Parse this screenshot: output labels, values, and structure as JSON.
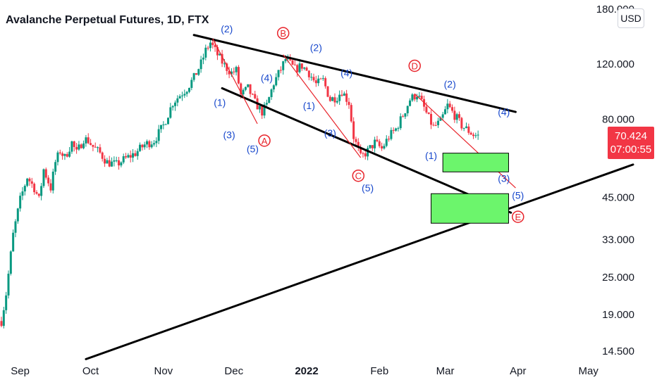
{
  "header": {
    "title": "Avalanche Perpetual Futures, 1D, FTX",
    "currency_button": "USD"
  },
  "price_tag": {
    "price": "70.424",
    "countdown": "07:00:55",
    "color": "#f23645"
  },
  "colors": {
    "up": "#089981",
    "down": "#f23645",
    "trendline": "#000000",
    "wave_blue": "#1848cc",
    "wave_red": "#e8242b",
    "box_fill": "#6cf56c"
  },
  "chart_data": {
    "type": "candlestick",
    "title": "Avalanche Perpetual Futures, 1D, FTX",
    "yscale": "log",
    "ylim": [
      14.5,
      180
    ],
    "y_ticks": [
      "180.000",
      "120.000",
      "80.000",
      "45.000",
      "33.000",
      "25.000",
      "19.000",
      "14.500"
    ],
    "x_ticks": [
      "Sep",
      "Oct",
      "Nov",
      "Dec",
      "2022",
      "Feb",
      "Mar",
      "Apr",
      "May"
    ],
    "x_range": [
      "2021-08-24",
      "2022-05-20"
    ],
    "last_price": "70.424",
    "close_path": [
      [
        "2021-08-24",
        18
      ],
      [
        "2021-08-26",
        22
      ],
      [
        "2021-08-29",
        34
      ],
      [
        "2021-09-01",
        44
      ],
      [
        "2021-09-04",
        52
      ],
      [
        "2021-09-07",
        48
      ],
      [
        "2021-09-09",
        44
      ],
      [
        "2021-09-11",
        55
      ],
      [
        "2021-09-14",
        48
      ],
      [
        "2021-09-16",
        58
      ],
      [
        "2021-09-18",
        63
      ],
      [
        "2021-09-20",
        60
      ],
      [
        "2021-09-23",
        67
      ],
      [
        "2021-09-25",
        62
      ],
      [
        "2021-09-28",
        69
      ],
      [
        "2021-09-30",
        68
      ],
      [
        "2021-10-02",
        65
      ],
      [
        "2021-10-05",
        62
      ],
      [
        "2021-10-08",
        58
      ],
      [
        "2021-10-12",
        57
      ],
      [
        "2021-10-15",
        59
      ],
      [
        "2021-10-20",
        62
      ],
      [
        "2021-10-24",
        66
      ],
      [
        "2021-10-28",
        68
      ],
      [
        "2021-11-01",
        76
      ],
      [
        "2021-11-05",
        90
      ],
      [
        "2021-11-08",
        95
      ],
      [
        "2021-11-11",
        100
      ],
      [
        "2021-11-14",
        108
      ],
      [
        "2021-11-17",
        120
      ],
      [
        "2021-11-19",
        132
      ],
      [
        "2021-11-21",
        140
      ],
      [
        "2021-11-24",
        128
      ],
      [
        "2021-11-27",
        118
      ],
      [
        "2021-11-30",
        112
      ],
      [
        "2021-12-02",
        114
      ],
      [
        "2021-12-04",
        95
      ],
      [
        "2021-12-07",
        100
      ],
      [
        "2021-12-10",
        90
      ],
      [
        "2021-12-13",
        84
      ],
      [
        "2021-12-15",
        88
      ],
      [
        "2021-12-18",
        104
      ],
      [
        "2021-12-21",
        115
      ],
      [
        "2021-12-23",
        124
      ],
      [
        "2021-12-27",
        115
      ],
      [
        "2021-12-30",
        118
      ],
      [
        "2022-01-02",
        112
      ],
      [
        "2022-01-05",
        103
      ],
      [
        "2022-01-08",
        106
      ],
      [
        "2022-01-11",
        92
      ],
      [
        "2022-01-14",
        94
      ],
      [
        "2022-01-16",
        98
      ],
      [
        "2022-01-19",
        90
      ],
      [
        "2022-01-21",
        70
      ],
      [
        "2022-01-24",
        60
      ],
      [
        "2022-01-27",
        63
      ],
      [
        "2022-01-30",
        67
      ],
      [
        "2022-02-02",
        64
      ],
      [
        "2022-02-05",
        70
      ],
      [
        "2022-02-08",
        74
      ],
      [
        "2022-02-11",
        82
      ],
      [
        "2022-02-14",
        92
      ],
      [
        "2022-02-17",
        96
      ],
      [
        "2022-02-19",
        90
      ],
      [
        "2022-02-22",
        80
      ],
      [
        "2022-02-24",
        75
      ],
      [
        "2022-02-27",
        78
      ],
      [
        "2022-03-02",
        88
      ],
      [
        "2022-03-05",
        82
      ],
      [
        "2022-03-08",
        76
      ],
      [
        "2022-03-11",
        73
      ],
      [
        "2022-03-13",
        71
      ],
      [
        "2022-03-15",
        70.4
      ]
    ],
    "trendlines": [
      {
        "name": "upper",
        "from": [
          "2021-11-14",
          148
        ],
        "to": [
          "2022-03-31",
          84
        ]
      },
      {
        "name": "lower",
        "from": [
          "2021-11-26",
          100
        ],
        "to": [
          "2022-03-29",
          40
        ]
      },
      {
        "name": "support",
        "from": [
          "2021-09-29",
          13.6
        ],
        "to": [
          "2022-05-20",
          57
        ]
      }
    ],
    "wave_paths": [
      {
        "points": [
          [
            "2021-11-22",
            144
          ],
          [
            "2021-12-11",
            77
          ]
        ]
      },
      {
        "points": [
          [
            "2021-12-22",
            128
          ],
          [
            "2022-01-24",
            60
          ]
        ]
      },
      {
        "points": [
          [
            "2022-02-16",
            96
          ],
          [
            "2022-03-31",
            48
          ]
        ]
      }
    ],
    "zones": [
      {
        "from": [
          "2022-02-28",
          62
        ],
        "to": [
          "2022-03-28",
          54
        ]
      },
      {
        "from": [
          "2022-02-23",
          46
        ],
        "to": [
          "2022-03-28",
          37
        ]
      }
    ],
    "wave_labels": [
      {
        "text": "(2)",
        "at": [
          "2021-11-28",
          155
        ],
        "color": "blue",
        "circled": false
      },
      {
        "text": "B",
        "at": [
          "2021-12-22",
          150
        ],
        "color": "red",
        "circled": true
      },
      {
        "text": "(2)",
        "at": [
          "2022-01-05",
          135
        ],
        "color": "blue",
        "circled": false
      },
      {
        "text": "(4)",
        "at": [
          "2021-12-15",
          108
        ],
        "color": "blue",
        "circled": false
      },
      {
        "text": "(4)",
        "at": [
          "2022-01-18",
          112
        ],
        "color": "blue",
        "circled": false
      },
      {
        "text": "(1)",
        "at": [
          "2021-11-25",
          90
        ],
        "color": "blue",
        "circled": false
      },
      {
        "text": "(1)",
        "at": [
          "2022-01-02",
          88
        ],
        "color": "blue",
        "circled": false
      },
      {
        "text": "(3)",
        "at": [
          "2021-11-29",
          71
        ],
        "color": "blue",
        "circled": false
      },
      {
        "text": "(3)",
        "at": [
          "2022-01-11",
          72
        ],
        "color": "blue",
        "circled": false
      },
      {
        "text": "(5)",
        "at": [
          "2021-12-09",
          64
        ],
        "color": "blue",
        "circled": false
      },
      {
        "text": "A",
        "at": [
          "2021-12-14",
          68
        ],
        "color": "red",
        "circled": true
      },
      {
        "text": "C",
        "at": [
          "2022-01-23",
          52.5
        ],
        "color": "red",
        "circled": true
      },
      {
        "text": "(5)",
        "at": [
          "2022-01-27",
          48
        ],
        "color": "blue",
        "circled": false
      },
      {
        "text": "D",
        "at": [
          "2022-02-16",
          118
        ],
        "color": "red",
        "circled": true
      },
      {
        "text": "(2)",
        "at": [
          "2022-03-03",
          103
        ],
        "color": "blue",
        "circled": false
      },
      {
        "text": "(4)",
        "at": [
          "2022-03-26",
          84
        ],
        "color": "blue",
        "circled": false
      },
      {
        "text": "(1)",
        "at": [
          "2022-02-23",
          61
        ],
        "color": "blue",
        "circled": false
      },
      {
        "text": "(3)",
        "at": [
          "2022-03-26",
          51.5
        ],
        "color": "blue",
        "circled": false
      },
      {
        "text": "(5)",
        "at": [
          "2022-04-01",
          45.5
        ],
        "color": "blue",
        "circled": false
      },
      {
        "text": "E",
        "at": [
          "2022-04-01",
          38.8
        ],
        "color": "red",
        "circled": true
      }
    ]
  }
}
